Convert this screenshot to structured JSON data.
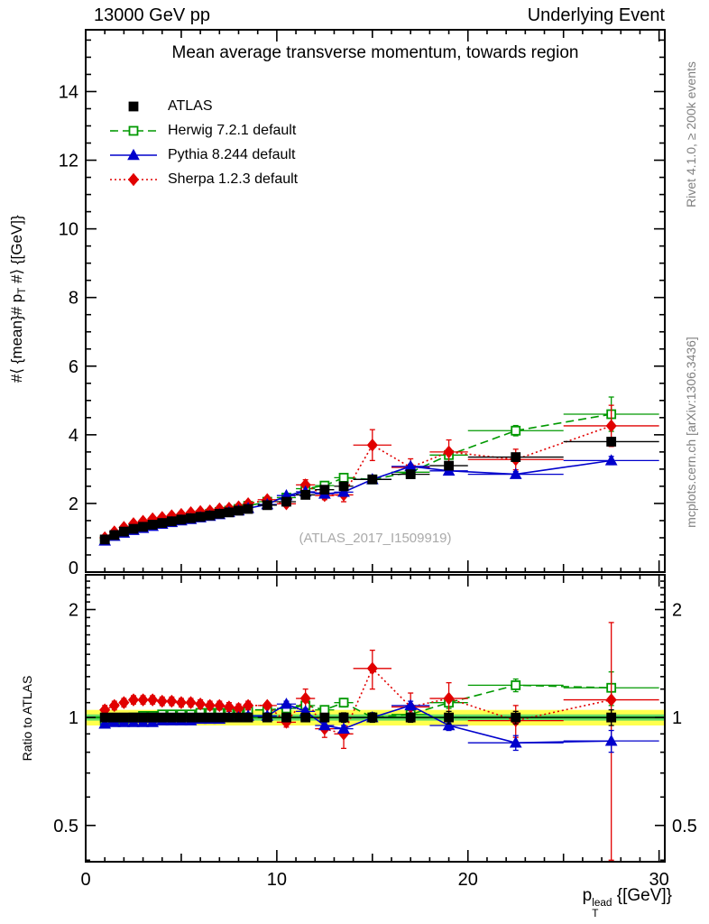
{
  "header": {
    "left": "13000 GeV pp",
    "right": "Underlying Event"
  },
  "side_labels": {
    "top_right": "Rivet 4.1.0, ≥ 200k events",
    "bottom_right": "mcplots.cern.ch [arXiv:1306.3436]"
  },
  "watermark": "(ATLAS_2017_I1509919)",
  "chart_data": {
    "type": "line",
    "title": "Mean average transverse momentum, towards region",
    "xlabel_parts": {
      "base": "p",
      "sub": "T",
      "sup": "lead",
      "rest": " {[GeV]}"
    },
    "ylabel_parts": {
      "pre": "#⟨ {mean}# p",
      "sub": "T",
      "post": " #⟩ {[GeV]}"
    },
    "ratio_ylabel": "Ratio to ATLAS",
    "xlim": [
      0,
      30.3
    ],
    "ylim_main": [
      0,
      15.8
    ],
    "ylim_ratio": [
      0.396,
      2.5
    ],
    "ratio_scale": "log",
    "x_major_ticks": [
      0,
      10,
      20,
      30
    ],
    "y_major_ticks_main": [
      0,
      2,
      4,
      6,
      8,
      10,
      12,
      14
    ],
    "ratio_ticks": [
      0.5,
      1,
      2
    ],
    "ratio_minor_ticks": [
      0.4,
      0.6,
      0.7,
      0.8,
      0.9,
      1.1,
      1.2,
      1.3,
      1.4,
      1.5,
      1.6,
      1.7,
      1.8,
      1.9,
      2.1,
      2.2,
      2.3,
      2.4
    ],
    "bands": {
      "yellow": [
        0.95,
        1.05
      ],
      "green": [
        0.98,
        1.02
      ],
      "line": 1.0,
      "yellow_color": "#ffff4d",
      "green_color": "#66dd66",
      "line_color": "#009900"
    },
    "x": [
      1,
      1.5,
      2,
      2.5,
      3,
      3.5,
      4,
      4.5,
      5,
      5.5,
      6,
      6.5,
      7,
      7.5,
      8,
      8.5,
      9.5,
      10.5,
      11.5,
      12.5,
      13.5,
      15,
      17,
      19,
      22.5,
      27.5
    ],
    "xerr": [
      0.25,
      0.25,
      0.25,
      0.25,
      0.25,
      0.25,
      0.25,
      0.25,
      0.25,
      0.25,
      0.25,
      0.25,
      0.25,
      0.25,
      0.25,
      0.25,
      0.5,
      0.5,
      0.5,
      0.5,
      0.5,
      1,
      1,
      1,
      2.5,
      2.5
    ],
    "series": [
      {
        "name": "ATLAS",
        "color": "#000000",
        "marker": "square",
        "fill": "solid",
        "line": "none",
        "values": [
          0.95,
          1.08,
          1.18,
          1.26,
          1.32,
          1.38,
          1.43,
          1.48,
          1.53,
          1.57,
          1.61,
          1.65,
          1.7,
          1.74,
          1.79,
          1.84,
          1.95,
          2.05,
          2.25,
          2.4,
          2.5,
          2.7,
          2.85,
          3.1,
          3.35,
          3.8
        ],
        "yerr": [
          0.02,
          0.02,
          0.02,
          0.02,
          0.02,
          0.02,
          0.02,
          0.02,
          0.02,
          0.02,
          0.02,
          0.02,
          0.02,
          0.02,
          0.02,
          0.02,
          0.03,
          0.03,
          0.04,
          0.04,
          0.05,
          0.06,
          0.08,
          0.09,
          0.1,
          0.12
        ],
        "ratio": [
          1,
          1,
          1,
          1,
          1,
          1,
          1,
          1,
          1,
          1,
          1,
          1,
          1,
          1,
          1,
          1,
          1,
          1,
          1,
          1,
          1,
          1,
          1,
          1,
          1,
          1
        ],
        "ratio_err": [
          0.02,
          0.02,
          0.02,
          0.02,
          0.02,
          0.02,
          0.02,
          0.02,
          0.02,
          0.02,
          0.02,
          0.02,
          0.02,
          0.02,
          0.02,
          0.02,
          0.02,
          0.02,
          0.02,
          0.02,
          0.03,
          0.03,
          0.03,
          0.04,
          0.04,
          0.05
        ]
      },
      {
        "name": "Herwig 7.2.1 default",
        "color": "#009900",
        "marker": "square",
        "fill": "open",
        "line": "dashed",
        "values": [
          0.92,
          1.06,
          1.17,
          1.26,
          1.33,
          1.39,
          1.46,
          1.51,
          1.56,
          1.6,
          1.66,
          1.7,
          1.75,
          1.79,
          1.84,
          1.93,
          2.05,
          2.17,
          2.43,
          2.52,
          2.75,
          2.7,
          2.91,
          3.41,
          4.12,
          4.6
        ],
        "yerr": [
          0.02,
          0.02,
          0.02,
          0.02,
          0.02,
          0.02,
          0.02,
          0.02,
          0.02,
          0.02,
          0.02,
          0.02,
          0.02,
          0.02,
          0.02,
          0.02,
          0.03,
          0.03,
          0.04,
          0.04,
          0.05,
          0.06,
          0.07,
          0.1,
          0.15,
          0.5
        ],
        "ratio": [
          0.97,
          0.98,
          0.99,
          1.0,
          1.01,
          1.01,
          1.02,
          1.02,
          1.02,
          1.02,
          1.03,
          1.03,
          1.03,
          1.03,
          1.03,
          1.05,
          1.05,
          1.06,
          1.08,
          1.05,
          1.1,
          1.0,
          1.02,
          1.1,
          1.23,
          1.21
        ],
        "ratio_err": [
          0.02,
          0.02,
          0.02,
          0.02,
          0.02,
          0.02,
          0.02,
          0.02,
          0.02,
          0.02,
          0.02,
          0.02,
          0.02,
          0.02,
          0.02,
          0.02,
          0.02,
          0.02,
          0.02,
          0.02,
          0.03,
          0.03,
          0.03,
          0.04,
          0.05,
          0.13
        ]
      },
      {
        "name": "Pythia 8.244 default",
        "color": "#0000cc",
        "marker": "triangle",
        "fill": "solid",
        "line": "solid",
        "values": [
          0.91,
          1.05,
          1.14,
          1.22,
          1.28,
          1.34,
          1.4,
          1.45,
          1.5,
          1.54,
          1.59,
          1.63,
          1.68,
          1.74,
          1.79,
          1.86,
          1.97,
          2.23,
          2.34,
          2.28,
          2.33,
          2.7,
          3.08,
          2.95,
          2.85,
          3.25
        ],
        "yerr": [
          0.02,
          0.02,
          0.02,
          0.02,
          0.02,
          0.02,
          0.02,
          0.02,
          0.02,
          0.02,
          0.02,
          0.02,
          0.02,
          0.02,
          0.02,
          0.02,
          0.03,
          0.03,
          0.03,
          0.04,
          0.04,
          0.05,
          0.06,
          0.07,
          0.08,
          0.12
        ],
        "ratio": [
          0.96,
          0.97,
          0.97,
          0.97,
          0.97,
          0.97,
          0.98,
          0.98,
          0.98,
          0.98,
          0.99,
          0.99,
          0.99,
          1.0,
          1.0,
          1.01,
          1.01,
          1.09,
          1.04,
          0.95,
          0.93,
          1.0,
          1.08,
          0.95,
          0.85,
          0.86
        ],
        "ratio_err": [
          0.02,
          0.02,
          0.02,
          0.02,
          0.02,
          0.02,
          0.02,
          0.02,
          0.02,
          0.02,
          0.02,
          0.02,
          0.02,
          0.02,
          0.02,
          0.02,
          0.02,
          0.02,
          0.02,
          0.02,
          0.02,
          0.03,
          0.03,
          0.03,
          0.04,
          0.06
        ]
      },
      {
        "name": "Sherpa 1.2.3 default",
        "color": "#e10000",
        "marker": "diamond",
        "fill": "solid",
        "line": "dotted",
        "values": [
          1.0,
          1.17,
          1.3,
          1.41,
          1.48,
          1.55,
          1.59,
          1.64,
          1.68,
          1.73,
          1.76,
          1.78,
          1.84,
          1.86,
          1.9,
          1.99,
          2.11,
          1.99,
          2.54,
          2.23,
          2.25,
          3.7,
          3.05,
          3.5,
          3.28,
          4.26
        ],
        "yerr": [
          0.03,
          0.03,
          0.03,
          0.03,
          0.03,
          0.03,
          0.03,
          0.03,
          0.03,
          0.03,
          0.03,
          0.03,
          0.03,
          0.03,
          0.03,
          0.03,
          0.04,
          0.05,
          0.15,
          0.12,
          0.2,
          0.45,
          0.25,
          0.35,
          0.3,
          0.6
        ],
        "ratio": [
          1.05,
          1.08,
          1.1,
          1.12,
          1.12,
          1.12,
          1.11,
          1.11,
          1.1,
          1.1,
          1.09,
          1.08,
          1.08,
          1.07,
          1.06,
          1.08,
          1.08,
          0.97,
          1.13,
          0.93,
          0.9,
          1.37,
          1.07,
          1.13,
          0.98,
          1.12
        ],
        "ratio_err": [
          0.03,
          0.03,
          0.03,
          0.03,
          0.03,
          0.03,
          0.03,
          0.03,
          0.03,
          0.03,
          0.03,
          0.03,
          0.03,
          0.03,
          0.03,
          0.03,
          0.02,
          0.03,
          0.07,
          0.05,
          0.08,
          0.17,
          0.1,
          0.12,
          0.1,
          0.72
        ]
      }
    ]
  }
}
